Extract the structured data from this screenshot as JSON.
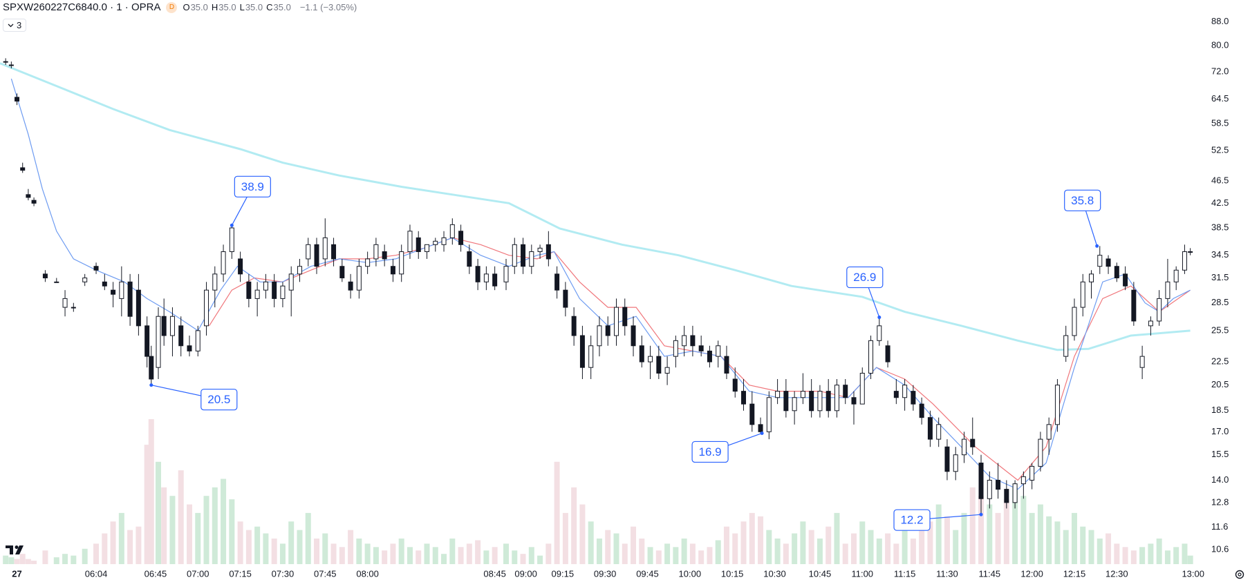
{
  "header": {
    "badge": "D",
    "ohlc": [
      {
        "label": "O",
        "value": "35.0"
      },
      {
        "label": "H",
        "value": "35.0"
      },
      {
        "label": "L",
        "value": "35.0"
      },
      {
        "label": "C",
        "value": "35.0"
      }
    ],
    "change": "−1.1 (−3.05%)",
    "indicators": "3"
  },
  "chart_data": {
    "type": "candlestick",
    "title": "SPXW260227C6840.0 · 1 · OPRA",
    "log_scale": true,
    "grid": false,
    "up_color": "#ffffff",
    "down_color": "#131722",
    "wick_color": "#131722",
    "volume_up_color": "#cfead8",
    "volume_down_color": "#f3dfe3",
    "xlim": [
      0,
      425
    ],
    "ylim": [
      10,
      96
    ],
    "volume_lim": [
      0,
      100
    ],
    "xticks": [
      {
        "value": 6,
        "label": "27"
      },
      {
        "value": 34,
        "label": "06:04"
      },
      {
        "value": 55,
        "label": "06:45"
      },
      {
        "value": 70,
        "label": "07:00"
      },
      {
        "value": 85,
        "label": "07:15"
      },
      {
        "value": 100,
        "label": "07:30"
      },
      {
        "value": 115,
        "label": "07:45"
      },
      {
        "value": 130,
        "label": "08:00"
      },
      {
        "value": 175,
        "label": "08:45"
      },
      {
        "value": 186,
        "label": "09:00"
      },
      {
        "value": 199,
        "label": "09:15"
      },
      {
        "value": 214,
        "label": "09:30"
      },
      {
        "value": 229,
        "label": "09:45"
      },
      {
        "value": 244,
        "label": "10:00"
      },
      {
        "value": 259,
        "label": "10:15"
      },
      {
        "value": 274,
        "label": "10:30"
      },
      {
        "value": 290,
        "label": "10:45"
      },
      {
        "value": 305,
        "label": "11:00"
      },
      {
        "value": 320,
        "label": "11:15"
      },
      {
        "value": 335,
        "label": "11:30"
      },
      {
        "value": 350,
        "label": "11:45"
      },
      {
        "value": 365,
        "label": "12:00"
      },
      {
        "value": 380,
        "label": "12:15"
      },
      {
        "value": 395,
        "label": "12:30"
      },
      {
        "value": 422,
        "label": "13:00"
      }
    ],
    "yticks": [
      {
        "value": 88,
        "label": "88.0"
      },
      {
        "value": 80,
        "label": "80.0"
      },
      {
        "value": 72,
        "label": "72.0"
      },
      64.5,
      58.5,
      52.5,
      46.5,
      42.5,
      38.5,
      34.5,
      31.5,
      28.5,
      25.5,
      22.5,
      20.5,
      18.5,
      {
        "value": 17,
        "label": "17.0"
      },
      15.5,
      {
        "value": 14,
        "label": "14.0"
      },
      12.8,
      11.6,
      10.6
    ],
    "x": [
      2,
      4,
      6,
      8,
      10,
      12,
      16,
      20,
      23,
      26,
      30,
      34,
      37,
      40,
      43,
      46,
      49,
      52,
      53.5,
      56,
      58,
      61,
      64,
      67,
      70,
      73,
      76,
      79,
      82,
      85,
      88,
      91,
      94,
      97,
      100,
      103,
      106,
      109,
      112,
      115,
      118,
      121,
      124,
      127,
      130,
      133,
      136,
      139,
      142,
      145,
      148,
      151,
      154,
      157,
      160,
      163,
      166,
      169,
      172,
      175,
      179,
      182,
      185,
      188,
      191,
      194,
      197,
      200,
      203,
      206,
      209,
      212,
      215,
      218,
      221,
      224,
      227,
      230,
      233,
      236,
      239,
      242,
      245,
      248,
      251,
      254,
      257,
      260,
      263,
      266,
      269,
      272,
      275,
      278,
      281,
      284,
      287,
      290,
      293,
      296,
      299,
      302,
      305,
      308,
      311,
      314,
      317,
      320,
      323,
      326,
      329,
      332,
      335,
      338,
      341,
      344,
      347,
      350,
      353,
      356,
      359,
      362,
      365,
      368,
      371,
      374,
      377,
      380,
      383,
      386,
      389,
      392,
      395,
      398,
      401,
      404,
      407,
      410,
      413,
      416,
      419,
      421
    ],
    "open": [
      75,
      74,
      65,
      49,
      44,
      43,
      32,
      31,
      28,
      28,
      31,
      33,
      31,
      30,
      29,
      31,
      30,
      26,
      23,
      22,
      27,
      25,
      26,
      24,
      23.5,
      26,
      30,
      32,
      35,
      34,
      31,
      29,
      30,
      31,
      29,
      30,
      32,
      34,
      36,
      34,
      36,
      33,
      31,
      30,
      33,
      34,
      35,
      33,
      32,
      35,
      37,
      35,
      36,
      36,
      37,
      38,
      35,
      33,
      31,
      32,
      31,
      33,
      36,
      33,
      35,
      36,
      32,
      30,
      27,
      25,
      22,
      24,
      26,
      25,
      28,
      26,
      24,
      22.5,
      23,
      21.5,
      23,
      24,
      25,
      24,
      23.5,
      23,
      23,
      21,
      20,
      19,
      17.5,
      17,
      19.5,
      20,
      18.5,
      19.5,
      20,
      18.5,
      20,
      18.5,
      20.5,
      19.5,
      19,
      21.5,
      24.5,
      24,
      20,
      19.5,
      20,
      19,
      18,
      16.5,
      16,
      14.5,
      15.5,
      16.5,
      15,
      13,
      14,
      13.5,
      12.8,
      13.8,
      14,
      14.8,
      16.5,
      17.5,
      23,
      25,
      28,
      31,
      33,
      34,
      33,
      32,
      30,
      22,
      26,
      26.5,
      29,
      31,
      32.5,
      35
    ],
    "high": [
      76,
      75,
      66,
      50,
      45,
      43.5,
      32.5,
      31.5,
      30,
      28.5,
      32,
      33.5,
      32,
      31,
      33,
      32,
      32,
      27,
      24,
      28,
      29,
      28,
      27,
      25,
      26,
      31,
      33,
      36,
      38.9,
      35,
      32,
      31,
      32,
      32,
      31,
      33,
      34,
      37,
      37,
      40,
      37,
      34,
      32,
      34,
      35,
      37,
      36,
      34,
      36,
      39,
      38,
      36,
      37,
      38,
      40,
      39,
      36,
      34,
      33,
      33,
      34,
      37,
      37,
      36,
      36,
      38,
      33,
      31,
      28,
      26,
      25,
      27,
      27,
      29,
      29,
      27,
      25,
      24,
      24,
      23,
      25,
      26,
      26,
      25,
      24,
      24.5,
      24,
      22,
      21,
      20,
      18,
      20,
      21,
      21,
      20,
      21.5,
      21,
      20.5,
      21,
      21,
      21,
      20,
      22,
      25,
      26.9,
      24.5,
      21,
      21,
      20.5,
      19.5,
      18.5,
      18,
      16.5,
      16,
      17,
      18,
      15.5,
      14.5,
      15,
      14,
      14,
      14.5,
      15,
      17,
      18,
      21,
      26,
      29,
      32,
      32.5,
      35.8,
      34.5,
      33.5,
      33,
      31,
      24,
      27,
      30,
      34,
      33,
      36,
      35.5
    ],
    "low": [
      74,
      73,
      63,
      48,
      43,
      42,
      31,
      31,
      27,
      27.5,
      30.5,
      32,
      30,
      28,
      27,
      26,
      25,
      22,
      20.5,
      21,
      24,
      23,
      23,
      23,
      23,
      25,
      28,
      31,
      34,
      31,
      28,
      27,
      29,
      28,
      28,
      27,
      31,
      33,
      32,
      33,
      33,
      31,
      29,
      29,
      32,
      33,
      33,
      31,
      31,
      34,
      34,
      34,
      35,
      35,
      36,
      35,
      32,
      30,
      30,
      30,
      30,
      32,
      32,
      32,
      34,
      33,
      29,
      27,
      24,
      21,
      21,
      23,
      24,
      24,
      25,
      23,
      22,
      21,
      21,
      20.5,
      22,
      23,
      23,
      23,
      22,
      22,
      21,
      19.5,
      18.5,
      17,
      16.9,
      16.5,
      19,
      18,
      17.5,
      19,
      18,
      18,
      18,
      18,
      19,
      17.5,
      19,
      21,
      24,
      22,
      19,
      18.5,
      18.5,
      17.5,
      16,
      16,
      14,
      14,
      15,
      15.5,
      12.2,
      12.5,
      13,
      12.5,
      12.5,
      13,
      13.5,
      14.5,
      15.5,
      17,
      22.5,
      24.5,
      27,
      29,
      32,
      32,
      31,
      30,
      26,
      21,
      25,
      26,
      28,
      30,
      32,
      34.5
    ],
    "close": [
      75,
      74,
      64,
      48.5,
      43.5,
      42.5,
      31.5,
      31,
      29,
      28,
      31.5,
      32.5,
      30.5,
      29.5,
      31,
      27,
      26,
      23,
      21,
      27,
      25,
      27,
      24,
      23.5,
      25.5,
      30,
      32,
      35,
      38.5,
      32,
      29,
      30,
      31,
      29,
      30.5,
      32,
      33,
      36,
      33,
      37,
      34,
      31.5,
      30,
      33,
      34,
      36,
      34,
      32,
      35,
      38,
      35,
      36,
      36.5,
      37,
      39,
      36,
      33,
      31,
      32,
      30.5,
      33,
      36,
      33,
      35,
      35.5,
      34,
      30,
      28,
      25,
      22,
      24,
      26,
      25,
      28,
      26,
      24,
      22.5,
      23,
      21.5,
      22,
      24.5,
      25,
      24,
      23.5,
      22.5,
      24,
      21.5,
      20,
      19,
      17.5,
      17,
      19.5,
      20,
      18.5,
      19.5,
      20,
      18.5,
      20,
      18.5,
      20.5,
      19.5,
      19,
      21.5,
      24.5,
      26,
      22.5,
      19.5,
      20.5,
      19,
      18,
      16.5,
      17.5,
      14.5,
      15.5,
      16.5,
      16,
      13,
      14,
      13.5,
      12.8,
      13.8,
      14.2,
      14.8,
      16.5,
      17.5,
      20.5,
      25,
      28,
      31,
      32,
      34.5,
      33,
      31.5,
      30.5,
      26.5,
      23,
      26.5,
      29,
      31,
      32.5,
      35,
      35
    ],
    "volume": [
      5,
      4,
      3,
      6,
      3,
      2,
      8,
      4,
      6,
      5,
      9,
      12,
      18,
      25,
      30,
      20,
      22,
      70,
      85,
      60,
      45,
      40,
      55,
      35,
      30,
      40,
      45,
      50,
      38,
      25,
      20,
      22,
      18,
      15,
      12,
      25,
      20,
      30,
      15,
      18,
      12,
      10,
      20,
      15,
      12,
      10,
      8,
      12,
      15,
      10,
      8,
      12,
      10,
      6,
      15,
      10,
      12,
      14,
      8,
      10,
      12,
      8,
      6,
      10,
      5,
      12,
      60,
      30,
      45,
      35,
      25,
      15,
      20,
      18,
      12,
      22,
      15,
      10,
      8,
      12,
      10,
      15,
      12,
      8,
      10,
      14,
      22,
      18,
      25,
      30,
      28,
      20,
      15,
      12,
      18,
      25,
      20,
      15,
      22,
      30,
      12,
      18,
      25,
      20,
      15,
      18,
      12,
      22,
      15,
      30,
      25,
      35,
      28,
      20,
      30,
      45,
      40,
      35,
      30,
      38,
      45,
      40,
      30,
      35,
      28,
      25,
      20,
      30,
      22,
      20,
      15,
      18,
      12,
      10,
      8,
      10,
      12,
      15,
      8,
      10,
      12,
      5
    ],
    "lines": [
      {
        "color": "#b2ebf2",
        "x": [
          0,
          20,
          40,
          60,
          85,
          100,
          120,
          142,
          160,
          180,
          198,
          220,
          240,
          260,
          280,
          305,
          320,
          340,
          360,
          374,
          385,
          400,
          421
        ],
        "values": [
          74.5,
          68,
          62,
          57,
          52.8,
          50,
          47.5,
          45.4,
          44,
          42.5,
          38.4,
          36,
          34.5,
          32.5,
          30.5,
          29.2,
          27.5,
          26,
          24.5,
          23.6,
          23.7,
          25,
          25.5
        ]
      },
      {
        "color": "#f0767b",
        "x": [
          74,
          82,
          90,
          100,
          110,
          120,
          130,
          140,
          150,
          160,
          170,
          180,
          190,
          196,
          205,
          215,
          225,
          235,
          245,
          255,
          265,
          275,
          290,
          300,
          310,
          320,
          330,
          345,
          360,
          370,
          380,
          390,
          400,
          410,
          421
        ],
        "values": [
          26,
          30,
          31.5,
          31,
          32.5,
          34,
          34,
          34.5,
          35.5,
          37,
          36,
          34.5,
          34,
          35,
          31,
          28,
          28,
          24,
          23.5,
          23,
          20.5,
          20,
          20,
          19.5,
          22,
          21,
          19,
          16,
          14,
          16,
          23,
          29,
          30.5,
          27.5,
          30
        ]
      },
      {
        "color": "#6d9bf1",
        "x": [
          4,
          10,
          15,
          20,
          26,
          34,
          44,
          52,
          60,
          70,
          78,
          84,
          92,
          100,
          110,
          120,
          130,
          140,
          150,
          160,
          170,
          180,
          190,
          196,
          205,
          215,
          225,
          235,
          245,
          255,
          265,
          275,
          285,
          300,
          310,
          320,
          330,
          340,
          350,
          360,
          370,
          380,
          390,
          398,
          405,
          410,
          415,
          421
        ],
        "values": [
          70,
          56,
          45,
          38,
          34,
          32.5,
          31,
          29,
          27.5,
          25.5,
          30,
          33,
          31,
          31,
          33,
          34,
          33.5,
          34,
          35.5,
          37,
          34.5,
          33,
          34.5,
          35,
          29,
          26,
          27,
          23,
          23.5,
          23,
          20,
          19.5,
          19.5,
          19.5,
          22,
          20.5,
          18,
          16,
          14.2,
          13.5,
          15,
          22,
          31,
          32,
          28.5,
          27.5,
          29,
          30
        ]
      }
    ],
    "annotations": [
      {
        "x": 82,
        "value": 38.9
      },
      {
        "x": 53.5,
        "value": 20.5
      },
      {
        "x": 269.5,
        "value": 16.9
      },
      {
        "x": 311,
        "value": 26.9
      },
      {
        "x": 347,
        "value": 12.2
      },
      {
        "x": 388,
        "value": 35.8
      }
    ]
  }
}
